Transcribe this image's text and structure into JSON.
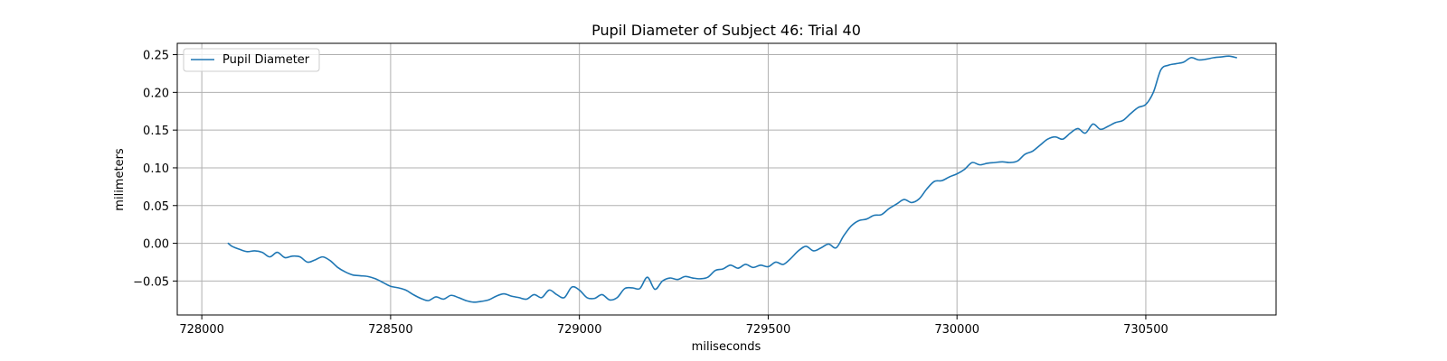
{
  "chart_data": {
    "type": "line",
    "title": "Pupil Diameter of Subject 46: Trial 40",
    "xlabel": "miliseconds",
    "ylabel": "milimeters",
    "xlim": [
      727935,
      730845
    ],
    "ylim": [
      -0.095,
      0.265
    ],
    "xticks": [
      728000,
      728500,
      729000,
      729500,
      730000,
      730500
    ],
    "yticks": [
      -0.05,
      0.0,
      0.05,
      0.1,
      0.15,
      0.2,
      0.25
    ],
    "xtick_labels": [
      "728000",
      "728500",
      "729000",
      "729500",
      "730000",
      "730500"
    ],
    "ytick_labels": [
      "−0.05",
      "0.00",
      "0.05",
      "0.10",
      "0.15",
      "0.20",
      "0.25"
    ],
    "grid": true,
    "legend_position": "top-left",
    "series": [
      {
        "name": "Pupil Diameter",
        "color": "#1f77b4",
        "points": [
          [
            728070,
            0.0
          ],
          [
            728080,
            -0.004
          ],
          [
            728100,
            -0.008
          ],
          [
            728120,
            -0.011
          ],
          [
            728140,
            -0.01
          ],
          [
            728160,
            -0.012
          ],
          [
            728180,
            -0.018
          ],
          [
            728200,
            -0.012
          ],
          [
            728220,
            -0.019
          ],
          [
            728240,
            -0.017
          ],
          [
            728260,
            -0.018
          ],
          [
            728280,
            -0.025
          ],
          [
            728300,
            -0.022
          ],
          [
            728320,
            -0.018
          ],
          [
            728340,
            -0.023
          ],
          [
            728360,
            -0.032
          ],
          [
            728380,
            -0.038
          ],
          [
            728400,
            -0.042
          ],
          [
            728420,
            -0.043
          ],
          [
            728440,
            -0.044
          ],
          [
            728460,
            -0.047
          ],
          [
            728480,
            -0.052
          ],
          [
            728500,
            -0.057
          ],
          [
            728520,
            -0.059
          ],
          [
            728540,
            -0.062
          ],
          [
            728560,
            -0.068
          ],
          [
            728580,
            -0.073
          ],
          [
            728600,
            -0.076
          ],
          [
            728620,
            -0.071
          ],
          [
            728640,
            -0.074
          ],
          [
            728660,
            -0.069
          ],
          [
            728680,
            -0.072
          ],
          [
            728700,
            -0.076
          ],
          [
            728720,
            -0.078
          ],
          [
            728740,
            -0.077
          ],
          [
            728760,
            -0.075
          ],
          [
            728780,
            -0.07
          ],
          [
            728800,
            -0.067
          ],
          [
            728820,
            -0.07
          ],
          [
            728840,
            -0.072
          ],
          [
            728860,
            -0.074
          ],
          [
            728880,
            -0.068
          ],
          [
            728900,
            -0.072
          ],
          [
            728920,
            -0.062
          ],
          [
            728940,
            -0.068
          ],
          [
            728960,
            -0.072
          ],
          [
            728980,
            -0.058
          ],
          [
            729000,
            -0.062
          ],
          [
            729020,
            -0.072
          ],
          [
            729040,
            -0.073
          ],
          [
            729060,
            -0.068
          ],
          [
            729080,
            -0.075
          ],
          [
            729100,
            -0.072
          ],
          [
            729120,
            -0.06
          ],
          [
            729140,
            -0.059
          ],
          [
            729160,
            -0.06
          ],
          [
            729180,
            -0.045
          ],
          [
            729200,
            -0.061
          ],
          [
            729220,
            -0.05
          ],
          [
            729240,
            -0.046
          ],
          [
            729260,
            -0.048
          ],
          [
            729280,
            -0.044
          ],
          [
            729300,
            -0.046
          ],
          [
            729320,
            -0.047
          ],
          [
            729340,
            -0.045
          ],
          [
            729360,
            -0.036
          ],
          [
            729380,
            -0.034
          ],
          [
            729400,
            -0.029
          ],
          [
            729420,
            -0.033
          ],
          [
            729440,
            -0.028
          ],
          [
            729460,
            -0.032
          ],
          [
            729480,
            -0.029
          ],
          [
            729500,
            -0.031
          ],
          [
            729520,
            -0.025
          ],
          [
            729540,
            -0.028
          ],
          [
            729560,
            -0.02
          ],
          [
            729580,
            -0.01
          ],
          [
            729600,
            -0.004
          ],
          [
            729620,
            -0.01
          ],
          [
            729640,
            -0.006
          ],
          [
            729660,
            -0.001
          ],
          [
            729680,
            -0.006
          ],
          [
            729700,
            0.01
          ],
          [
            729720,
            0.023
          ],
          [
            729740,
            0.03
          ],
          [
            729760,
            0.032
          ],
          [
            729780,
            0.037
          ],
          [
            729800,
            0.038
          ],
          [
            729820,
            0.046
          ],
          [
            729840,
            0.052
          ],
          [
            729860,
            0.058
          ],
          [
            729880,
            0.054
          ],
          [
            729900,
            0.059
          ],
          [
            729920,
            0.072
          ],
          [
            729940,
            0.082
          ],
          [
            729960,
            0.083
          ],
          [
            729980,
            0.088
          ],
          [
            730000,
            0.092
          ],
          [
            730020,
            0.098
          ],
          [
            730040,
            0.107
          ],
          [
            730060,
            0.104
          ],
          [
            730080,
            0.106
          ],
          [
            730100,
            0.107
          ],
          [
            730120,
            0.108
          ],
          [
            730140,
            0.107
          ],
          [
            730160,
            0.109
          ],
          [
            730180,
            0.118
          ],
          [
            730200,
            0.122
          ],
          [
            730220,
            0.13
          ],
          [
            730240,
            0.138
          ],
          [
            730260,
            0.141
          ],
          [
            730280,
            0.138
          ],
          [
            730300,
            0.146
          ],
          [
            730320,
            0.152
          ],
          [
            730340,
            0.146
          ],
          [
            730360,
            0.158
          ],
          [
            730380,
            0.151
          ],
          [
            730400,
            0.155
          ],
          [
            730420,
            0.16
          ],
          [
            730440,
            0.163
          ],
          [
            730460,
            0.172
          ],
          [
            730480,
            0.18
          ],
          [
            730500,
            0.184
          ],
          [
            730520,
            0.2
          ],
          [
            730540,
            0.23
          ],
          [
            730560,
            0.236
          ],
          [
            730580,
            0.238
          ],
          [
            730600,
            0.24
          ],
          [
            730620,
            0.246
          ],
          [
            730640,
            0.243
          ],
          [
            730660,
            0.244
          ],
          [
            730680,
            0.246
          ],
          [
            730700,
            0.247
          ],
          [
            730720,
            0.248
          ],
          [
            730740,
            0.246
          ]
        ]
      }
    ]
  }
}
